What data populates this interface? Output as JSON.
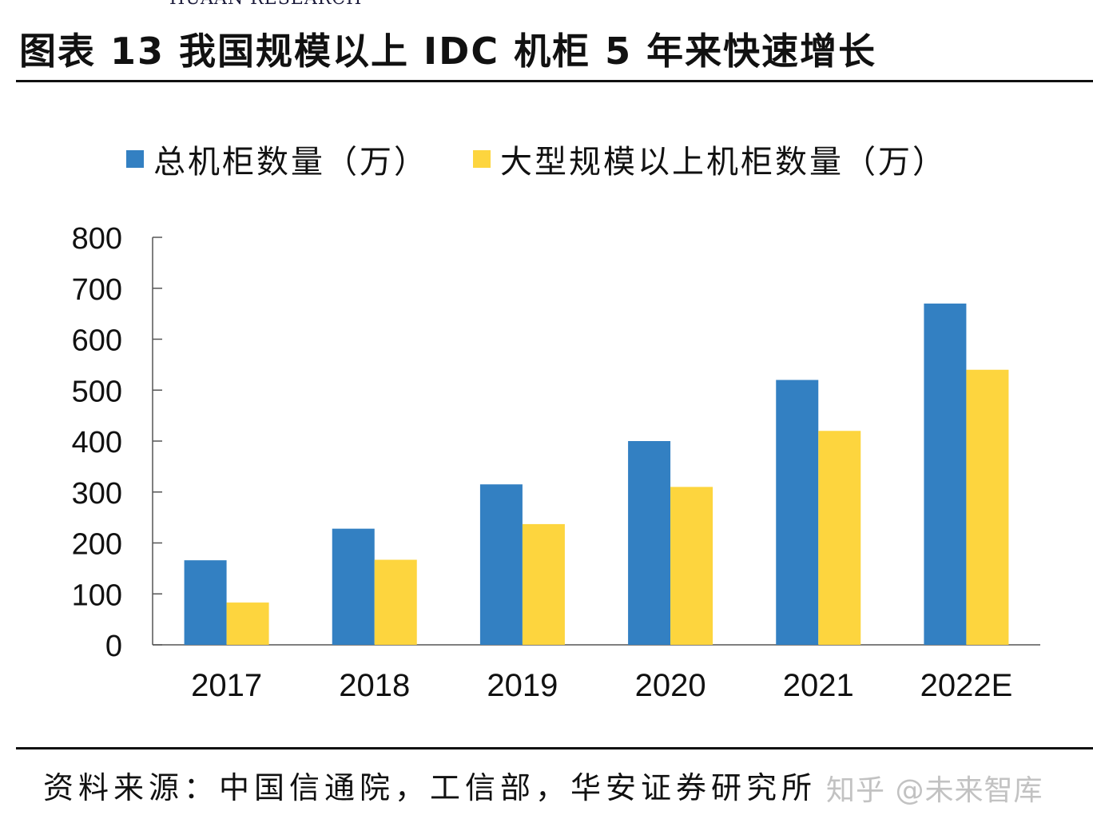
{
  "header": {
    "brand": "HUAAN RESEARCH",
    "title": "图表 13  我国规模以上 IDC 机柜 5 年来快速增长"
  },
  "colors": {
    "total": "#3380C2",
    "large": "#FDD53E",
    "axis": "#555555",
    "rule": "#111111"
  },
  "chart_data": {
    "type": "bar",
    "title": "",
    "categories": [
      "2017",
      "2018",
      "2019",
      "2020",
      "2021",
      "2022E"
    ],
    "series": [
      {
        "name": "总机柜数量（万）",
        "values": [
          166,
          228,
          315,
          400,
          520,
          670
        ]
      },
      {
        "name": "大型规模以上机柜数量（万）",
        "values": [
          83,
          167,
          237,
          310,
          420,
          540
        ]
      }
    ],
    "ylim": [
      0,
      800
    ],
    "yticks": [
      0,
      100,
      200,
      300,
      400,
      500,
      600,
      700,
      800
    ],
    "xlabel": "",
    "ylabel": "",
    "legend": "top",
    "grid": false
  },
  "footer": {
    "source": "资料来源：中国信通院，工信部，华安证券研究所",
    "watermark": "知乎 @未来智库"
  }
}
